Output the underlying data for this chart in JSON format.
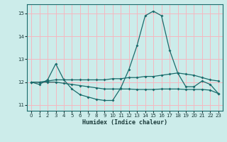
{
  "xlabel": "Humidex (Indice chaleur)",
  "background_color": "#ccecea",
  "grid_color": "#f5b8c0",
  "line_color": "#1a6b6b",
  "xlim": [
    -0.5,
    23.5
  ],
  "ylim": [
    10.75,
    15.4
  ],
  "yticks": [
    11,
    12,
    13,
    14,
    15
  ],
  "xticks": [
    0,
    1,
    2,
    3,
    4,
    5,
    6,
    7,
    8,
    9,
    10,
    11,
    12,
    13,
    14,
    15,
    16,
    17,
    18,
    19,
    20,
    21,
    22,
    23
  ],
  "line1_x": [
    0,
    1,
    2,
    3,
    4,
    5,
    6,
    7,
    8,
    9,
    10,
    11,
    12,
    13,
    14,
    15,
    16,
    17,
    18,
    19,
    20,
    21,
    22,
    23
  ],
  "line1_y": [
    12.0,
    11.9,
    12.1,
    12.8,
    12.1,
    11.7,
    11.45,
    11.35,
    11.25,
    11.2,
    11.2,
    11.75,
    12.55,
    13.6,
    14.9,
    15.1,
    14.9,
    13.4,
    12.4,
    11.8,
    11.8,
    12.05,
    11.9,
    11.5
  ],
  "line2_x": [
    0,
    1,
    2,
    3,
    4,
    5,
    6,
    7,
    8,
    9,
    10,
    11,
    12,
    13,
    14,
    15,
    16,
    17,
    18,
    19,
    20,
    21,
    22,
    23
  ],
  "line2_y": [
    12.0,
    12.0,
    12.05,
    12.1,
    12.1,
    12.1,
    12.1,
    12.1,
    12.1,
    12.1,
    12.15,
    12.15,
    12.2,
    12.2,
    12.25,
    12.25,
    12.3,
    12.35,
    12.4,
    12.35,
    12.3,
    12.2,
    12.1,
    12.05
  ],
  "line3_x": [
    0,
    1,
    2,
    3,
    4,
    5,
    6,
    7,
    8,
    9,
    10,
    11,
    12,
    13,
    14,
    15,
    16,
    17,
    18,
    19,
    20,
    21,
    22,
    23
  ],
  "line3_y": [
    12.0,
    12.0,
    12.0,
    12.0,
    11.95,
    11.9,
    11.85,
    11.8,
    11.75,
    11.7,
    11.7,
    11.7,
    11.7,
    11.68,
    11.68,
    11.68,
    11.7,
    11.7,
    11.7,
    11.68,
    11.68,
    11.68,
    11.65,
    11.5
  ]
}
